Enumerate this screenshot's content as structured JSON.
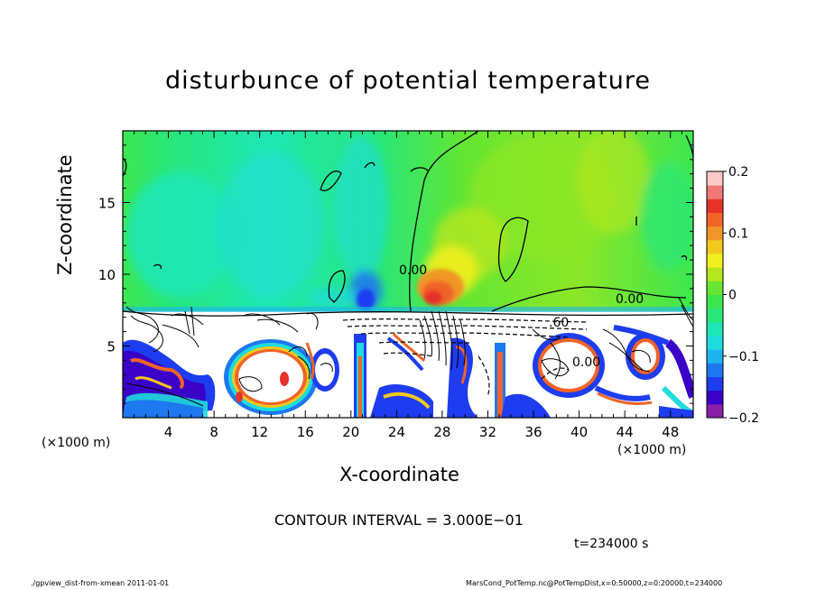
{
  "chart_data": {
    "type": "heatmap",
    "title": "disturbunce of potential temperature",
    "xlabel": "X-coordinate",
    "ylabel": "Z-coordinate",
    "x_unit": "(×1000 m)",
    "x_ticks": [
      4,
      8,
      12,
      16,
      20,
      24,
      28,
      32,
      36,
      40,
      44,
      48
    ],
    "y_ticks": [
      5,
      10,
      15
    ],
    "xlim": [
      0,
      50
    ],
    "ylim": [
      0,
      20
    ],
    "colorbar": {
      "ticks": [
        "0.2",
        "0.1",
        "0",
        "−0.1",
        "−0.2"
      ],
      "tick_values": [
        0.2,
        0.1,
        0,
        -0.1,
        -0.2
      ],
      "range": [
        -0.2,
        0.2
      ],
      "colors": [
        "#8b1fa8",
        "#3a00c8",
        "#1e3cf0",
        "#1e78f0",
        "#1eb4f0",
        "#1edcdc",
        "#1ee6b4",
        "#28e678",
        "#3ce650",
        "#64e632",
        "#b4e61e",
        "#f0f01e",
        "#f0c81e",
        "#f09628",
        "#f06428",
        "#e63228",
        "#f07878",
        "#ffc8c8"
      ]
    },
    "contour_labels": [
      "0.00",
      "0.00",
      ".60",
      "0.00"
    ],
    "contour_interval": "CONTOUR INTERVAL = 3.000E−01"
  },
  "annotations": {
    "time": "t=234000 s",
    "footer_left": "./gpview_dist-from-xmean 2011-01-01",
    "footer_right": "MarsCond_PotTemp.nc@PotTempDist,x=0:50000,z=0:20000,t=234000"
  }
}
